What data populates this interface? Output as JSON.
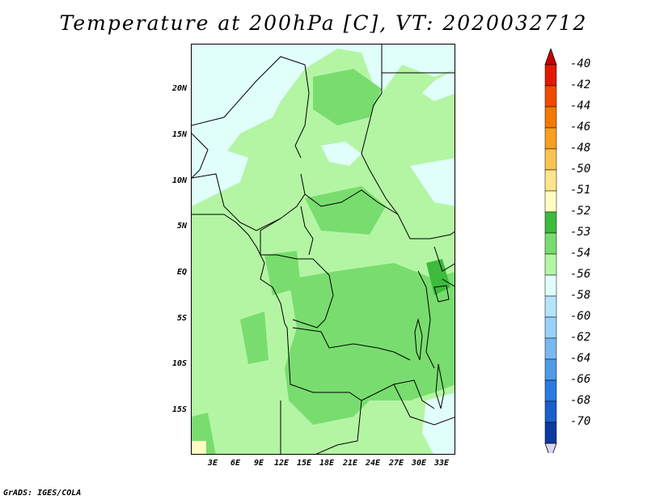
{
  "title": "Temperature at 200hPa [C], VT: 2020032712",
  "credit": "GrADS: IGES/COLA",
  "lat_labels": [
    "20N",
    "15N",
    "10N",
    "5N",
    "EQ",
    "5S",
    "10S",
    "15S"
  ],
  "lon_labels": [
    "3E",
    "6E",
    "9E",
    "12E",
    "15E",
    "18E",
    "21E",
    "24E",
    "27E",
    "30E",
    "33E"
  ],
  "colorbar": {
    "levels": [
      "-40",
      "-42",
      "-44",
      "-46",
      "-48",
      "-50",
      "-51",
      "-52",
      "-53",
      "-54",
      "-56",
      "-58",
      "-60",
      "-62",
      "-64",
      "-66",
      "-68",
      "-70"
    ],
    "colors": [
      "#e01a00",
      "#f04a00",
      "#f27a00",
      "#f7a020",
      "#f9c350",
      "#fce58a",
      "#fffdc0",
      "#3dbb3d",
      "#78dd6e",
      "#b4f5a4",
      "#e0fffa",
      "#b4e4fa",
      "#96d2f9",
      "#78b9f2",
      "#4f9be8",
      "#2a7be0",
      "#1a5fc8",
      "#0a3aa0"
    ],
    "top_triangle": "#c80000",
    "bottom_triangle": "#d8d8f8"
  },
  "map": {
    "ocean_color": "#b4f5a4",
    "cold_color": "#e0fffa",
    "warm_color": "#78dd6e",
    "warmest_color": "#3dbb3d",
    "hot_color": "#fffdc0"
  }
}
